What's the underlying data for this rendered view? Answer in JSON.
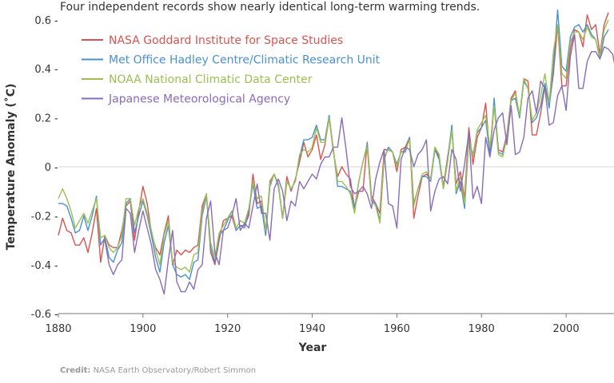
{
  "subtitle": "Four independent records show nearly identical long-term warming trends.",
  "credit": {
    "label": "Credit:",
    "text": "NASA Earth Observatory/Robert Simmon"
  },
  "chart_data": {
    "type": "line",
    "title": "",
    "xlabel": "Year",
    "ylabel": "Temperature Anomaly (˚C)",
    "xlim": [
      1880,
      2010
    ],
    "ylim": [
      -0.6,
      0.65
    ],
    "xticks": [
      "1880",
      "1900",
      "1920",
      "1940",
      "1960",
      "1980",
      "2000"
    ],
    "yticks": [
      "-0.6",
      "-0.4",
      "-0.2",
      "0",
      "0.2",
      "0.4",
      "0.6"
    ],
    "zero_gridline": true,
    "legend_position": "top-left",
    "series": [
      {
        "name": "NASA Goddard Institute for Space Studies",
        "color": "#d9534f",
        "start_year": 1880,
        "values": [
          -0.28,
          -0.21,
          -0.26,
          -0.27,
          -0.32,
          -0.32,
          -0.29,
          -0.35,
          -0.27,
          -0.17,
          -0.39,
          -0.28,
          -0.32,
          -0.33,
          -0.33,
          -0.26,
          -0.16,
          -0.14,
          -0.3,
          -0.18,
          -0.08,
          -0.15,
          -0.27,
          -0.33,
          -0.36,
          -0.27,
          -0.2,
          -0.4,
          -0.34,
          -0.36,
          -0.34,
          -0.35,
          -0.33,
          -0.32,
          -0.16,
          -0.11,
          -0.35,
          -0.4,
          -0.3,
          -0.22,
          -0.21,
          -0.2,
          -0.26,
          -0.24,
          -0.24,
          -0.2,
          -0.03,
          -0.15,
          -0.14,
          -0.28,
          -0.06,
          -0.03,
          -0.07,
          -0.21,
          -0.04,
          -0.1,
          -0.05,
          0.02,
          0.1,
          0.04,
          0.07,
          0.13,
          0.03,
          0.09,
          0.2,
          0.06,
          -0.04,
          0.0,
          -0.03,
          -0.05,
          -0.17,
          -0.1,
          -0.1,
          0.1,
          -0.12,
          -0.15,
          -0.19,
          0.07,
          0.07,
          0.06,
          -0.02,
          0.07,
          0.08,
          0.12,
          -0.21,
          -0.12,
          -0.04,
          -0.03,
          -0.05,
          0.08,
          0.04,
          -0.08,
          0.04,
          0.15,
          -0.07,
          -0.02,
          -0.13,
          0.16,
          0.01,
          0.12,
          0.16,
          0.26,
          0.04,
          0.26,
          0.07,
          0.06,
          0.13,
          0.28,
          0.31,
          0.2,
          0.36,
          0.35,
          0.13,
          0.13,
          0.22,
          0.33,
          0.25,
          0.38,
          0.58,
          0.33,
          0.33,
          0.48,
          0.56,
          0.55,
          0.49,
          0.62,
          0.56,
          0.58,
          0.46,
          0.58,
          0.63
        ]
      },
      {
        "name": "Met Office Hadley Centre/Climatic Research Unit",
        "color": "#4a90d0",
        "start_year": 1880,
        "values": [
          -0.15,
          -0.15,
          -0.16,
          -0.21,
          -0.27,
          -0.26,
          -0.2,
          -0.26,
          -0.2,
          -0.12,
          -0.32,
          -0.29,
          -0.37,
          -0.39,
          -0.34,
          -0.31,
          -0.15,
          -0.13,
          -0.27,
          -0.2,
          -0.14,
          -0.2,
          -0.28,
          -0.37,
          -0.43,
          -0.31,
          -0.24,
          -0.4,
          -0.44,
          -0.45,
          -0.44,
          -0.46,
          -0.39,
          -0.38,
          -0.2,
          -0.12,
          -0.33,
          -0.39,
          -0.28,
          -0.26,
          -0.22,
          -0.18,
          -0.26,
          -0.24,
          -0.25,
          -0.18,
          -0.07,
          -0.17,
          -0.16,
          -0.28,
          -0.08,
          -0.03,
          -0.08,
          -0.21,
          -0.06,
          -0.09,
          -0.06,
          0.04,
          0.11,
          0.11,
          0.12,
          0.17,
          0.11,
          0.11,
          0.21,
          0.07,
          -0.08,
          -0.08,
          -0.09,
          -0.1,
          -0.17,
          -0.06,
          0.02,
          0.09,
          -0.14,
          -0.15,
          -0.22,
          0.03,
          0.08,
          0.06,
          0.01,
          0.06,
          0.06,
          0.12,
          -0.15,
          -0.09,
          -0.04,
          -0.04,
          -0.06,
          0.07,
          0.03,
          -0.09,
          0.03,
          0.17,
          -0.11,
          -0.06,
          -0.17,
          0.11,
          0.05,
          0.14,
          0.16,
          0.19,
          0.05,
          0.28,
          0.06,
          0.05,
          0.12,
          0.27,
          0.28,
          0.2,
          0.35,
          0.32,
          0.18,
          0.2,
          0.25,
          0.34,
          0.24,
          0.41,
          0.64,
          0.41,
          0.39,
          0.53,
          0.57,
          0.58,
          0.55,
          0.58,
          0.54,
          0.52,
          0.44,
          0.53,
          0.56
        ]
      },
      {
        "name": "NOAA National Climatic Data Center",
        "color": "#9bc050",
        "start_year": 1880,
        "values": [
          -0.13,
          -0.09,
          -0.13,
          -0.18,
          -0.25,
          -0.22,
          -0.19,
          -0.23,
          -0.18,
          -0.13,
          -0.29,
          -0.28,
          -0.33,
          -0.35,
          -0.33,
          -0.28,
          -0.13,
          -0.13,
          -0.24,
          -0.17,
          -0.13,
          -0.19,
          -0.26,
          -0.34,
          -0.4,
          -0.28,
          -0.22,
          -0.39,
          -0.41,
          -0.42,
          -0.41,
          -0.43,
          -0.36,
          -0.35,
          -0.18,
          -0.11,
          -0.31,
          -0.37,
          -0.27,
          -0.24,
          -0.21,
          -0.18,
          -0.25,
          -0.22,
          -0.23,
          -0.17,
          -0.06,
          -0.13,
          -0.12,
          -0.26,
          -0.07,
          -0.03,
          -0.07,
          -0.21,
          -0.06,
          -0.09,
          -0.06,
          0.05,
          0.07,
          0.06,
          0.08,
          0.16,
          0.1,
          0.1,
          0.2,
          0.07,
          -0.06,
          -0.06,
          -0.08,
          -0.11,
          -0.19,
          -0.06,
          0.02,
          0.08,
          -0.14,
          -0.16,
          -0.23,
          0.04,
          0.07,
          0.06,
          0.0,
          0.06,
          0.07,
          0.11,
          -0.16,
          -0.09,
          -0.03,
          -0.02,
          -0.05,
          0.08,
          0.05,
          -0.09,
          0.02,
          0.15,
          -0.1,
          -0.04,
          -0.15,
          0.12,
          0.04,
          0.15,
          0.18,
          0.21,
          0.08,
          0.25,
          0.05,
          0.04,
          0.12,
          0.27,
          0.3,
          0.21,
          0.36,
          0.32,
          0.19,
          0.22,
          0.29,
          0.38,
          0.26,
          0.47,
          0.58,
          0.38,
          0.36,
          0.51,
          0.55,
          0.55,
          0.52,
          0.57,
          0.53,
          0.52,
          0.45,
          0.56,
          0.6
        ]
      },
      {
        "name": "Japanese Meteorological Agency",
        "color": "#8a6bb8",
        "start_year": 1891,
        "values": [
          -0.3,
          -0.4,
          -0.44,
          -0.4,
          -0.38,
          -0.17,
          -0.19,
          -0.35,
          -0.26,
          -0.18,
          -0.25,
          -0.32,
          -0.42,
          -0.46,
          -0.52,
          -0.38,
          -0.26,
          -0.47,
          -0.51,
          -0.51,
          -0.47,
          -0.5,
          -0.42,
          -0.4,
          -0.21,
          -0.14,
          -0.35,
          -0.4,
          -0.26,
          -0.25,
          -0.2,
          -0.13,
          -0.26,
          -0.23,
          -0.25,
          -0.16,
          -0.07,
          -0.19,
          -0.19,
          -0.3,
          -0.09,
          -0.05,
          -0.1,
          -0.22,
          -0.14,
          -0.16,
          -0.06,
          -0.09,
          -0.06,
          -0.03,
          -0.05,
          0.01,
          0.04,
          0.04,
          0.08,
          0.08,
          0.2,
          0.07,
          -0.08,
          -0.11,
          -0.1,
          -0.08,
          -0.11,
          -0.17,
          -0.05,
          0.02,
          0.07,
          -0.15,
          -0.16,
          -0.25,
          0.03,
          0.08,
          0.07,
          0.0,
          0.05,
          0.07,
          0.11,
          -0.18,
          -0.1,
          -0.05,
          -0.04,
          -0.07,
          0.07,
          0.03,
          -0.1,
          0.01,
          0.14,
          -0.13,
          -0.08,
          -0.15,
          0.12,
          0.04,
          0.15,
          0.2,
          0.22,
          0.09,
          0.25,
          0.05,
          0.06,
          0.12,
          0.28,
          0.31,
          0.22,
          0.35,
          0.32,
          0.17,
          0.18,
          0.29,
          0.33,
          0.23,
          0.45,
          0.54,
          0.32,
          0.32,
          0.43,
          0.47,
          0.47,
          0.44,
          0.49,
          0.48,
          0.46,
          0.37,
          0.47,
          0.52
        ]
      }
    ]
  }
}
